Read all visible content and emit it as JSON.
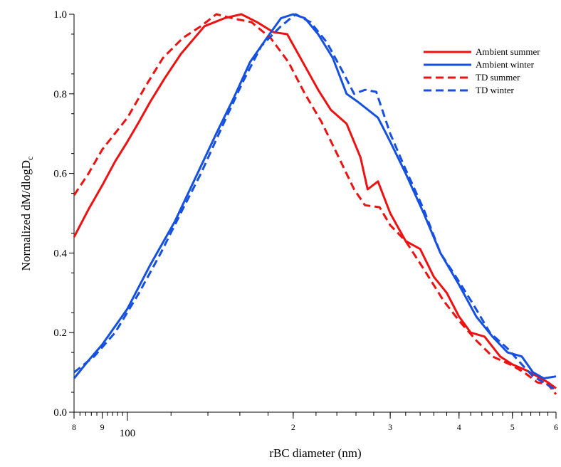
{
  "chart_data": {
    "type": "line",
    "title": "",
    "xlabel": "rBC diameter (nm)",
    "ylabel_main": "Normalized dM/dlogD",
    "ylabel_sub": "c",
    "xscale": "log",
    "xlim": [
      80,
      600
    ],
    "ylim": [
      0,
      1
    ],
    "grid": false,
    "legend_position": "top-right",
    "y_ticks": [
      0.0,
      0.2,
      0.4,
      0.6,
      0.8,
      1.0
    ],
    "y_tick_labels": [
      "0.0",
      "0.2",
      "0.4",
      "0.6",
      "0.8",
      "1.0"
    ],
    "x_ticks": [
      {
        "value": 80,
        "label": "8",
        "major": false
      },
      {
        "value": 90,
        "label": "9",
        "major": false
      },
      {
        "value": 100,
        "label": "100",
        "major": true
      },
      {
        "value": 200,
        "label": "2",
        "major": false
      },
      {
        "value": 300,
        "label": "3",
        "major": false
      },
      {
        "value": 400,
        "label": "4",
        "major": false
      },
      {
        "value": 500,
        "label": "5",
        "major": false
      },
      {
        "value": 600,
        "label": "6",
        "major": false
      }
    ],
    "series": [
      {
        "name": "Ambient summer",
        "color": "#ee1111",
        "dash": "solid",
        "points": [
          [
            80,
            0.44
          ],
          [
            85,
            0.51
          ],
          [
            90,
            0.57
          ],
          [
            95,
            0.63
          ],
          [
            100,
            0.68
          ],
          [
            105,
            0.73
          ],
          [
            110,
            0.78
          ],
          [
            117,
            0.84
          ],
          [
            125,
            0.9
          ],
          [
            138,
            0.97
          ],
          [
            150,
            0.99
          ],
          [
            161,
            1.0
          ],
          [
            172,
            0.98
          ],
          [
            184,
            0.955
          ],
          [
            195,
            0.95
          ],
          [
            210,
            0.87
          ],
          [
            222,
            0.81
          ],
          [
            234,
            0.76
          ],
          [
            250,
            0.725
          ],
          [
            265,
            0.64
          ],
          [
            273,
            0.56
          ],
          [
            285,
            0.58
          ],
          [
            300,
            0.5
          ],
          [
            320,
            0.43
          ],
          [
            340,
            0.41
          ],
          [
            360,
            0.34
          ],
          [
            380,
            0.3
          ],
          [
            400,
            0.24
          ],
          [
            420,
            0.2
          ],
          [
            445,
            0.19
          ],
          [
            475,
            0.14
          ],
          [
            500,
            0.12
          ],
          [
            530,
            0.105
          ],
          [
            555,
            0.09
          ],
          [
            580,
            0.075
          ],
          [
            600,
            0.06
          ]
        ]
      },
      {
        "name": "Ambient winter",
        "color": "#1650e0",
        "dash": "solid",
        "points": [
          [
            80,
            0.085
          ],
          [
            85,
            0.13
          ],
          [
            90,
            0.17
          ],
          [
            100,
            0.26
          ],
          [
            110,
            0.37
          ],
          [
            122,
            0.48
          ],
          [
            133,
            0.59
          ],
          [
            145,
            0.7
          ],
          [
            156,
            0.79
          ],
          [
            167,
            0.88
          ],
          [
            178,
            0.935
          ],
          [
            190,
            0.99
          ],
          [
            200,
            1.0
          ],
          [
            210,
            0.99
          ],
          [
            222,
            0.95
          ],
          [
            236,
            0.89
          ],
          [
            250,
            0.8
          ],
          [
            262,
            0.78
          ],
          [
            285,
            0.74
          ],
          [
            300,
            0.68
          ],
          [
            320,
            0.6
          ],
          [
            345,
            0.5
          ],
          [
            370,
            0.4
          ],
          [
            400,
            0.32
          ],
          [
            430,
            0.24
          ],
          [
            460,
            0.19
          ],
          [
            490,
            0.15
          ],
          [
            520,
            0.14
          ],
          [
            545,
            0.1
          ],
          [
            570,
            0.085
          ],
          [
            600,
            0.09
          ]
        ]
      },
      {
        "name": "TD summer",
        "color": "#ee1111",
        "dash": "dashed",
        "points": [
          [
            80,
            0.545
          ],
          [
            85,
            0.6
          ],
          [
            90,
            0.66
          ],
          [
            100,
            0.74
          ],
          [
            108,
            0.82
          ],
          [
            116,
            0.89
          ],
          [
            126,
            0.94
          ],
          [
            136,
            0.97
          ],
          [
            145,
            1.0
          ],
          [
            155,
            0.99
          ],
          [
            168,
            0.98
          ],
          [
            182,
            0.94
          ],
          [
            196,
            0.88
          ],
          [
            210,
            0.8
          ],
          [
            225,
            0.73
          ],
          [
            242,
            0.64
          ],
          [
            258,
            0.56
          ],
          [
            270,
            0.52
          ],
          [
            287,
            0.515
          ],
          [
            300,
            0.47
          ],
          [
            320,
            0.43
          ],
          [
            345,
            0.36
          ],
          [
            375,
            0.28
          ],
          [
            400,
            0.23
          ],
          [
            430,
            0.18
          ],
          [
            460,
            0.14
          ],
          [
            495,
            0.12
          ],
          [
            525,
            0.1
          ],
          [
            555,
            0.075
          ],
          [
            580,
            0.07
          ],
          [
            600,
            0.045
          ]
        ]
      },
      {
        "name": "TD winter",
        "color": "#1650e0",
        "dash": "dashed",
        "points": [
          [
            80,
            0.1
          ],
          [
            87,
            0.14
          ],
          [
            95,
            0.2
          ],
          [
            105,
            0.3
          ],
          [
            115,
            0.4
          ],
          [
            126,
            0.51
          ],
          [
            136,
            0.6
          ],
          [
            150,
            0.73
          ],
          [
            162,
            0.83
          ],
          [
            175,
            0.92
          ],
          [
            190,
            0.97
          ],
          [
            202,
            1.0
          ],
          [
            215,
            0.98
          ],
          [
            230,
            0.93
          ],
          [
            245,
            0.86
          ],
          [
            258,
            0.8
          ],
          [
            270,
            0.81
          ],
          [
            283,
            0.805
          ],
          [
            300,
            0.7
          ],
          [
            320,
            0.61
          ],
          [
            345,
            0.51
          ],
          [
            370,
            0.4
          ],
          [
            395,
            0.34
          ],
          [
            425,
            0.27
          ],
          [
            455,
            0.2
          ],
          [
            490,
            0.16
          ],
          [
            520,
            0.12
          ],
          [
            545,
            0.09
          ],
          [
            570,
            0.075
          ],
          [
            600,
            0.055
          ]
        ]
      }
    ]
  }
}
